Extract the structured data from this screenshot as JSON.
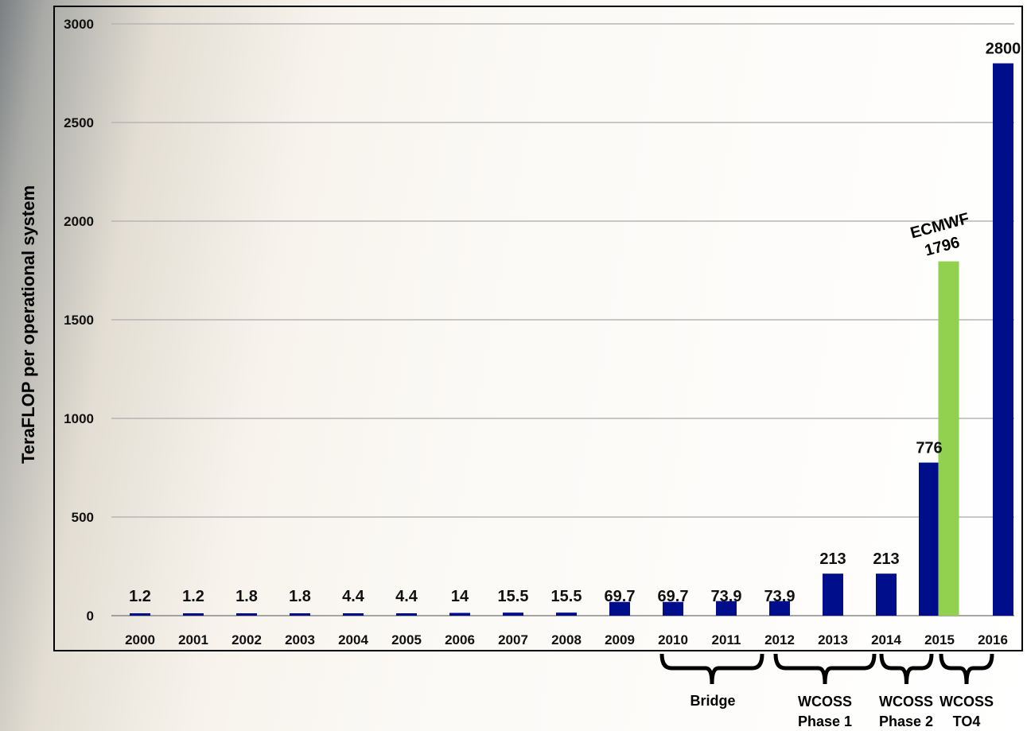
{
  "chart_data": {
    "type": "bar",
    "title": "",
    "xlabel": "",
    "ylabel": "TeraFLOP per operational system",
    "ylim": [
      0,
      3000
    ],
    "yticks": [
      "0",
      "500",
      "1000",
      "1500",
      "2000",
      "2500",
      "3000"
    ],
    "grid": true,
    "categories": [
      "2000",
      "2001",
      "2002",
      "2003",
      "2004",
      "2005",
      "2006",
      "2007",
      "2008",
      "2009",
      "2010",
      "2011",
      "2012",
      "2013",
      "2014",
      "2015",
      "2016"
    ],
    "series": [
      {
        "color": "#000e8c",
        "values": [
          1.2,
          1.2,
          1.8,
          1.8,
          4.4,
          4.4,
          14,
          15.5,
          15.5,
          69.7,
          69.7,
          73.9,
          73.9,
          213,
          213,
          776,
          2800
        ],
        "labels": [
          "1.2",
          "1.2",
          "1.8",
          "1.8",
          "4.4",
          "4.4",
          "14",
          "15.5",
          "15.5",
          "69.7",
          "69.7",
          "73.9",
          "73.9",
          "213",
          "213",
          "776",
          "2800"
        ]
      },
      {
        "color": "#92d050",
        "category": "2015",
        "value": 1796,
        "annotation": [
          "ECMWF",
          "1796"
        ]
      }
    ],
    "groups": [
      {
        "label": [
          "Bridge"
        ],
        "from": "2010",
        "to": "2012"
      },
      {
        "label": [
          "WCOSS",
          "Phase 1"
        ],
        "from": "2012",
        "to": "2014"
      },
      {
        "label": [
          "WCOSS",
          "Phase 2"
        ],
        "from": "2014",
        "to": "2015"
      },
      {
        "label": [
          "WCOSS",
          "TO4"
        ],
        "from": "2015",
        "to": "2016"
      }
    ]
  }
}
